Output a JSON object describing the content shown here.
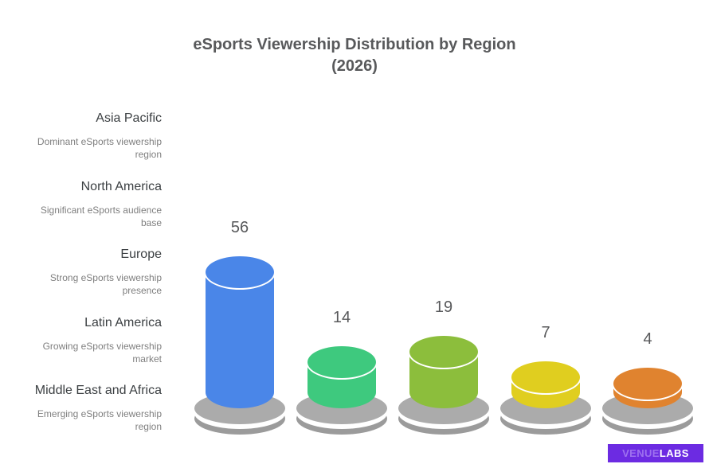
{
  "title": {
    "line1": "eSports Viewership Distribution by Region",
    "line2": "(2026)"
  },
  "regions": [
    {
      "name": "Asia Pacific",
      "description": "Dominant eSports viewership region"
    },
    {
      "name": "North America",
      "description": "Significant eSports audience base"
    },
    {
      "name": "Europe",
      "description": "Strong eSports viewership presence"
    },
    {
      "name": "Latin America",
      "description": "Growing eSports viewership market"
    },
    {
      "name": "Middle East and Africa",
      "description": "Emerging eSports viewership region"
    }
  ],
  "chart_data": {
    "type": "bar",
    "variant": "3d_cylinder",
    "title": "eSports Viewership Distribution by Region (2026)",
    "categories": [
      "Asia Pacific",
      "North America",
      "Europe",
      "Latin America",
      "Middle East and Africa"
    ],
    "values": [
      56,
      14,
      19,
      7,
      4
    ],
    "data_labels": [
      "56",
      "14",
      "19",
      "7",
      "4"
    ],
    "bar_colors": [
      "#4A86E8",
      "#3EC97E",
      "#8CBE3C",
      "#E0CE1F",
      "#E0832F"
    ],
    "pedestal_color_top": "#ABABAB",
    "pedestal_color_bottom": "#9B9B9B",
    "pedestal_divider_color": "#FFFFFF",
    "label_color": "#58595B",
    "axes_shown": false,
    "grid_shown": false,
    "legend_position": "left-labels"
  },
  "branding": {
    "prefix": "VENUE",
    "suffix": "LABS",
    "background": "#6C2BE2",
    "prefix_color": "#9E71EF",
    "suffix_color": "#FFFFFF"
  }
}
